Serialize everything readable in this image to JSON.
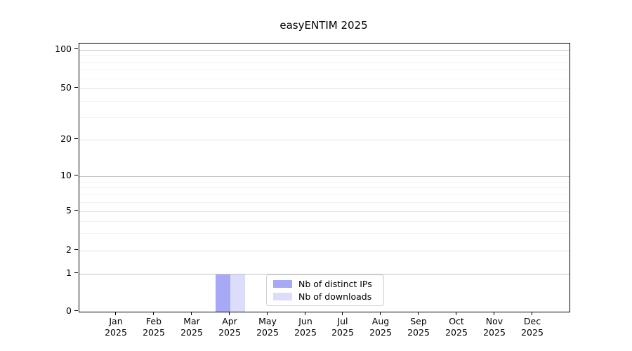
{
  "title": "easyENTIM 2025",
  "colors": {
    "background": "#ffffff",
    "axis": "#000000",
    "grid_decade": "#c4c4c4",
    "grid_labeled": "#e2e2e2",
    "grid_minor": "#f2f2f2",
    "legend_border": "#d0d0d0",
    "text": "#000000"
  },
  "chart_data": {
    "type": "bar",
    "title": "easyENTIM 2025",
    "categories": [
      "Jan",
      "Feb",
      "Mar",
      "Apr",
      "May",
      "Jun",
      "Jul",
      "Aug",
      "Sep",
      "Oct",
      "Nov",
      "Dec"
    ],
    "year": "2025",
    "series": [
      {
        "name": "Nb of distinct IPs",
        "color": "#a7a9f7",
        "values": [
          0,
          0,
          0,
          1,
          0,
          0,
          0,
          0,
          0,
          0,
          0,
          0
        ]
      },
      {
        "name": "Nb of downloads",
        "color": "#dbddfa",
        "values": [
          0,
          0,
          0,
          1,
          0,
          0,
          0,
          0,
          0,
          0,
          0,
          0
        ]
      }
    ],
    "yscale": "symlog",
    "ylim": [
      0,
      115
    ],
    "yticks": [
      0,
      1,
      2,
      5,
      10,
      20,
      50,
      100
    ],
    "minor_gridline_values": [
      3,
      4,
      6,
      7,
      8,
      9,
      30,
      40,
      60,
      70,
      80,
      90
    ],
    "grid": true,
    "legend_position": "lower center-right inside plot",
    "legend": {
      "items": [
        {
          "label": "Nb of distinct IPs",
          "color": "#a7a9f7"
        },
        {
          "label": "Nb of downloads",
          "color": "#dbddfa"
        }
      ]
    }
  }
}
